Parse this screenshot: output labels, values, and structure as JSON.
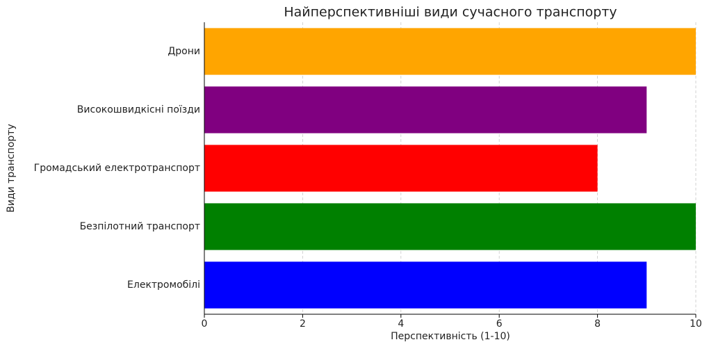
{
  "chart_data": {
    "type": "barh",
    "title": "Найперспективніші види сучасного транспорту",
    "xlabel": "Перспективність (1-10)",
    "ylabel": "Види транспорту",
    "categories": [
      "Електромобілі",
      "Безпілотний транспорт",
      "Громадський електротранспорт",
      "Високошвидкісні поїзди",
      "Дрони"
    ],
    "values": [
      9,
      10,
      8,
      9,
      10
    ],
    "colors": [
      "#0000ff",
      "#008000",
      "#ff0000",
      "#800080",
      "#ffa500"
    ],
    "xlim": [
      0,
      10
    ],
    "xticks": [
      0,
      2,
      4,
      6,
      8,
      10
    ],
    "grid": true
  }
}
